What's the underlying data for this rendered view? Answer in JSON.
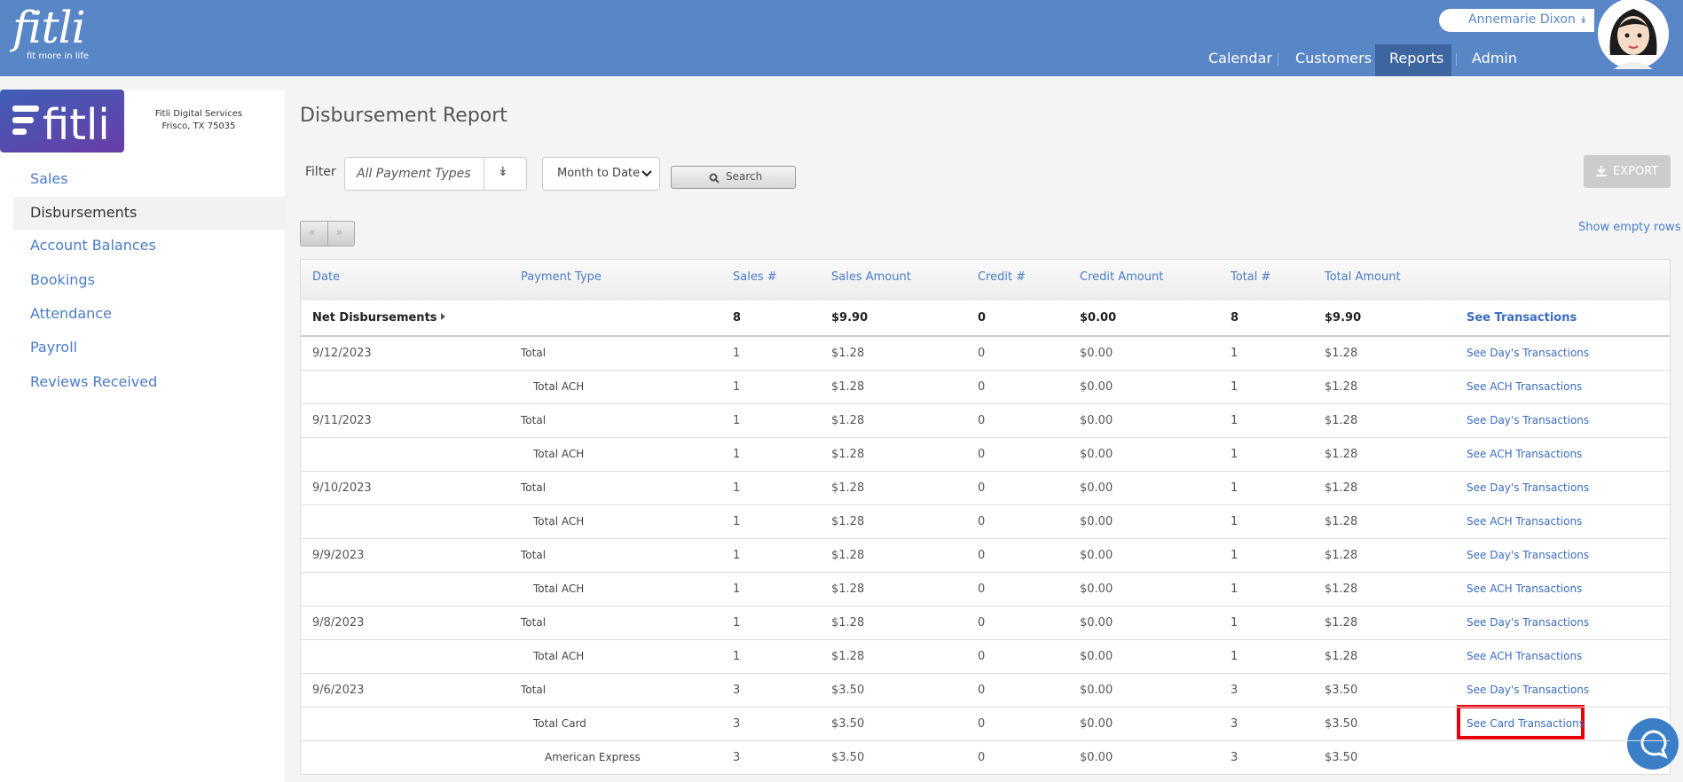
{
  "brand": {
    "logo": "fitli",
    "tagline": "fit more in life",
    "company_line1": "Fitli Digital Services",
    "company_line2": "Frisco, TX 75035"
  },
  "user": {
    "name": "Annemarie Dixon"
  },
  "nav": [
    "Calendar",
    "Customers",
    "Reports",
    "Admin"
  ],
  "sidebar": [
    "Sales",
    "Disbursements",
    "Account Balances",
    "Bookings",
    "Attendance",
    "Payroll",
    "Reviews Received"
  ],
  "page": {
    "title": "Disbursement Report",
    "filter_label": "Filter",
    "payment_select": "All Payment Types",
    "period_select": "Month to Date",
    "search": "Search",
    "export": "EXPORT",
    "prev": "«",
    "next": "»",
    "show_empty": "Show empty rows"
  },
  "table": {
    "columns": [
      "Date",
      "Payment Type",
      "Sales #",
      "Sales Amount",
      "Credit #",
      "Credit Amount",
      "Total #",
      "Total Amount"
    ],
    "summary": {
      "label": "Net Disbursements",
      "sales_count": 8,
      "sales_amount": "$9.90",
      "credit_count": 0,
      "credit_amount": "$0.00",
      "total_count": 8,
      "total_amount": "$9.90",
      "link": "See Transactions"
    },
    "rows": [
      {
        "date": "9/12/2023",
        "payment_type": "Total",
        "sales_count": 1,
        "sales_amount": "$1.28",
        "credit_count": 0,
        "credit_amount": "$0.00",
        "total_count": 1,
        "total_amount": "$1.28",
        "link": "See Day's Transactions"
      },
      {
        "payment_type": "Total ACH",
        "sales_count": 1,
        "sales_amount": "$1.28",
        "credit_count": 0,
        "credit_amount": "$0.00",
        "total_count": 1,
        "total_amount": "$1.28",
        "link": "See ACH Transactions"
      },
      {
        "date": "9/11/2023",
        "payment_type": "Total",
        "sales_count": 1,
        "sales_amount": "$1.28",
        "credit_count": 0,
        "credit_amount": "$0.00",
        "total_count": 1,
        "total_amount": "$1.28",
        "link": "See Day's Transactions"
      },
      {
        "payment_type": "Total ACH",
        "sales_count": 1,
        "sales_amount": "$1.28",
        "credit_count": 0,
        "credit_amount": "$0.00",
        "total_count": 1,
        "total_amount": "$1.28",
        "link": "See ACH Transactions"
      },
      {
        "date": "9/10/2023",
        "payment_type": "Total",
        "sales_count": 1,
        "sales_amount": "$1.28",
        "credit_count": 0,
        "credit_amount": "$0.00",
        "total_count": 1,
        "total_amount": "$1.28",
        "link": "See Day's Transactions"
      },
      {
        "payment_type": "Total ACH",
        "sales_count": 1,
        "sales_amount": "$1.28",
        "credit_count": 0,
        "credit_amount": "$0.00",
        "total_count": 1,
        "total_amount": "$1.28",
        "link": "See ACH Transactions"
      },
      {
        "date": "9/9/2023",
        "payment_type": "Total",
        "sales_count": 1,
        "sales_amount": "$1.28",
        "credit_count": 0,
        "credit_amount": "$0.00",
        "total_count": 1,
        "total_amount": "$1.28",
        "link": "See Day's Transactions"
      },
      {
        "payment_type": "Total ACH",
        "sales_count": 1,
        "sales_amount": "$1.28",
        "credit_count": 0,
        "credit_amount": "$0.00",
        "total_count": 1,
        "total_amount": "$1.28",
        "link": "See ACH Transactions"
      },
      {
        "date": "9/8/2023",
        "payment_type": "Total",
        "sales_count": 1,
        "sales_amount": "$1.28",
        "credit_count": 0,
        "credit_amount": "$0.00",
        "total_count": 1,
        "total_amount": "$1.28",
        "link": "See Day's Transactions"
      },
      {
        "payment_type": "Total ACH",
        "sales_count": 1,
        "sales_amount": "$1.28",
        "credit_count": 0,
        "credit_amount": "$0.00",
        "total_count": 1,
        "total_amount": "$1.28",
        "link": "See ACH Transactions"
      },
      {
        "date": "9/6/2023",
        "payment_type": "Total",
        "sales_count": 3,
        "sales_amount": "$3.50",
        "credit_count": 0,
        "credit_amount": "$0.00",
        "total_count": 3,
        "total_amount": "$3.50",
        "link": "See Day's Transactions"
      },
      {
        "payment_type": "Total Card",
        "sales_count": 3,
        "sales_amount": "$3.50",
        "credit_count": 0,
        "credit_amount": "$0.00",
        "total_count": 3,
        "total_amount": "$3.50",
        "link": "See Card Transactions"
      },
      {
        "payment_type": "American Express",
        "sales_count": 3,
        "sales_amount": "$3.50",
        "credit_count": 0,
        "credit_amount": "$0.00",
        "total_count": 3,
        "total_amount": "$3.50"
      }
    ]
  }
}
